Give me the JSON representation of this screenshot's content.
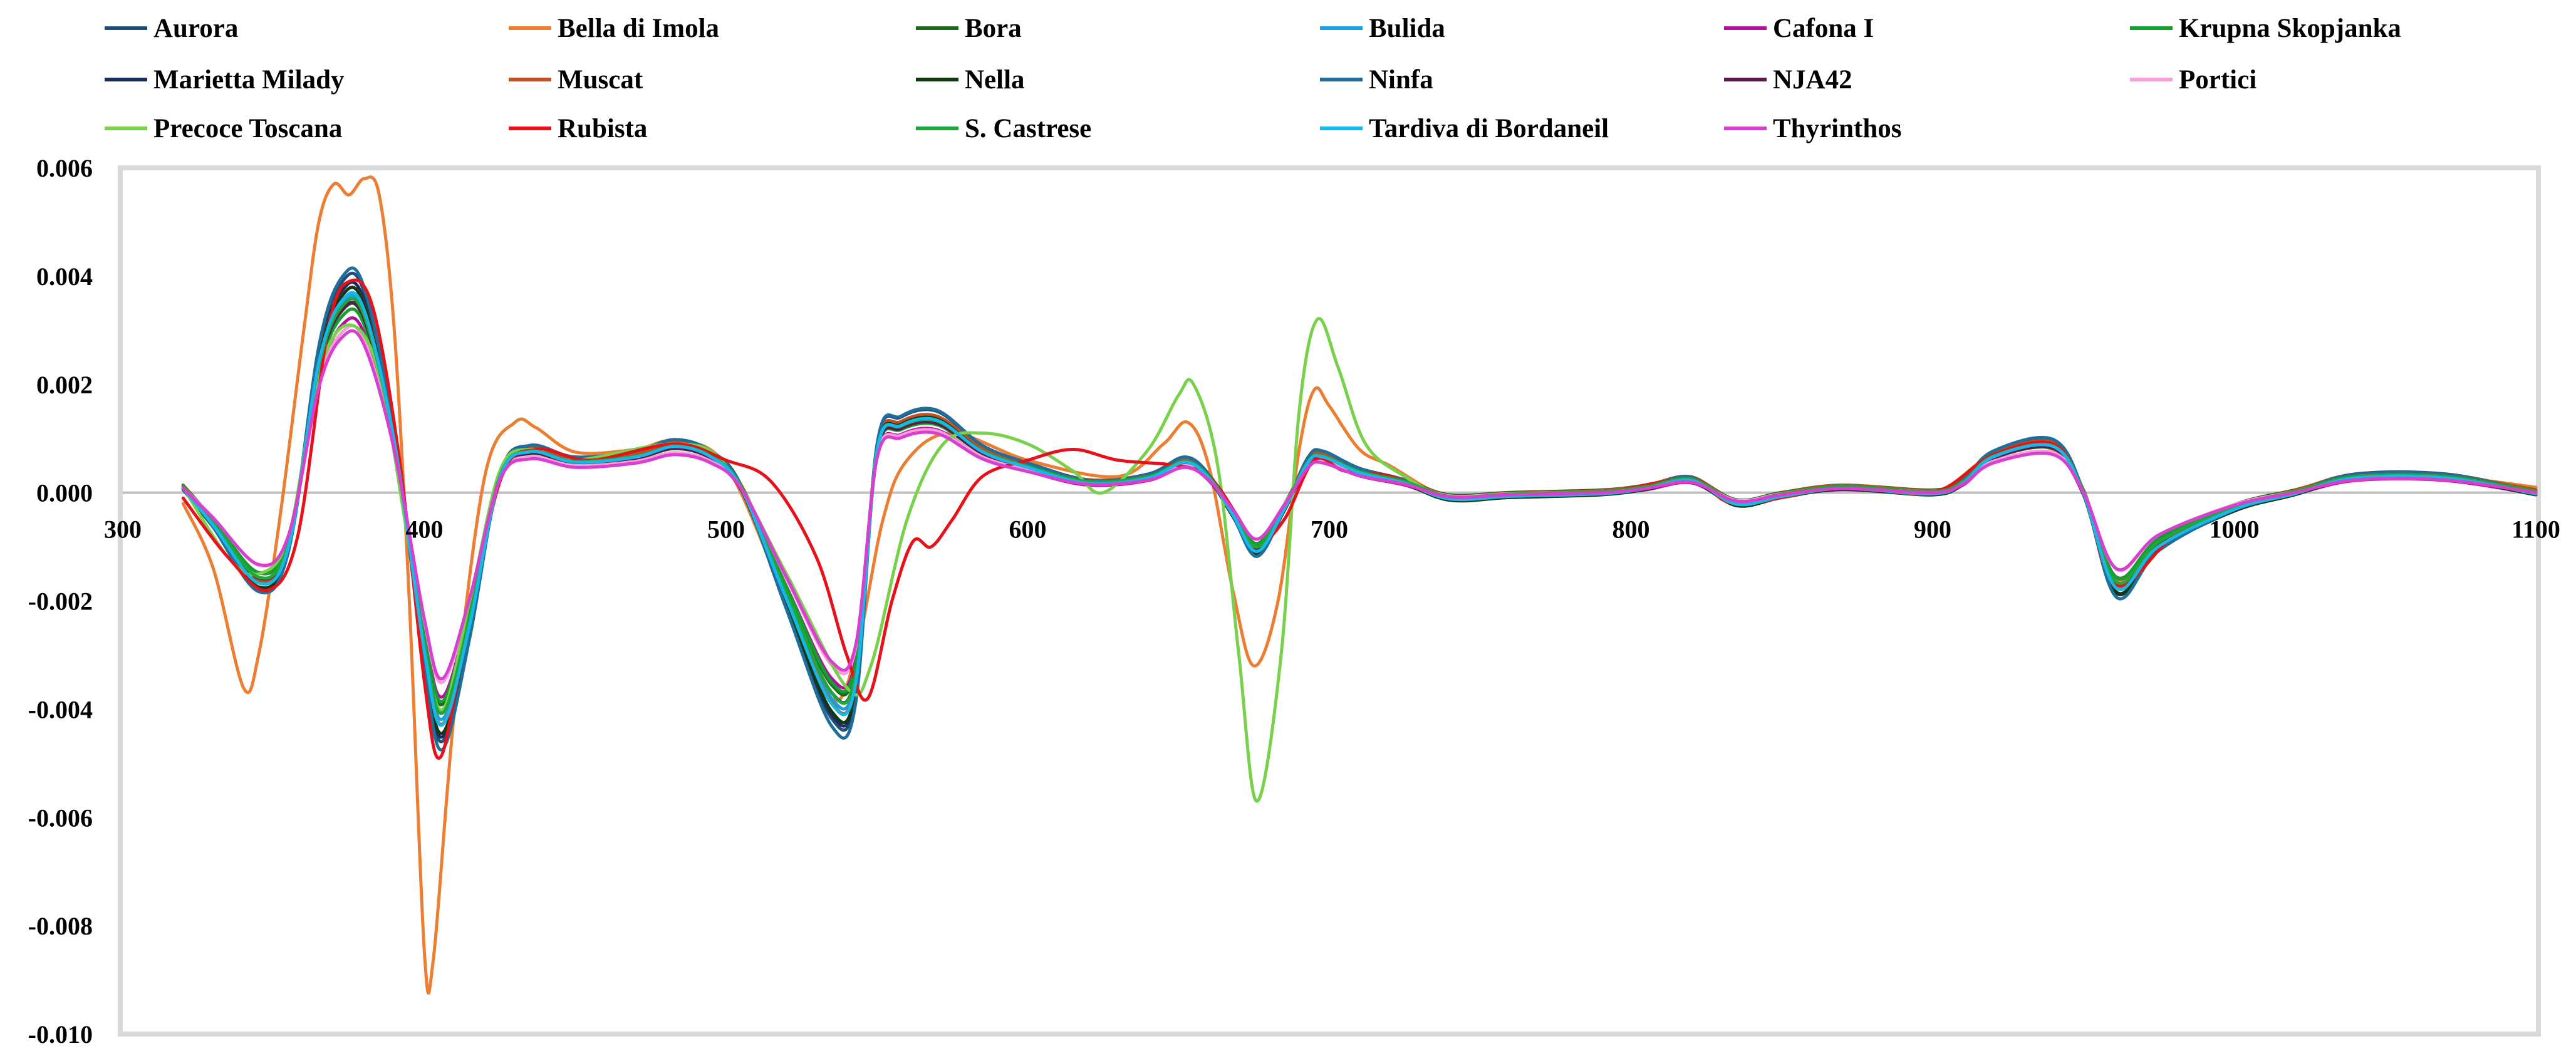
{
  "chart_data": {
    "type": "line",
    "title": "",
    "xlabel": "",
    "ylabel": "",
    "xlim": [
      300,
      1100
    ],
    "ylim": [
      -0.01,
      0.006
    ],
    "xticks": [
      "300",
      "400",
      "500",
      "600",
      "700",
      "800",
      "900",
      "1000",
      "1100"
    ],
    "yticks": [
      "0.006",
      "0.004",
      "0.002",
      "0.000",
      "-0.002",
      "-0.004",
      "-0.006",
      "-0.008",
      "-0.010"
    ],
    "legend_position": "top",
    "series": [
      {
        "name": "Aurora",
        "color": "#1f4e79",
        "scale": 1.05,
        "dy": 3e-05
      },
      {
        "name": "Bella di Imola",
        "color": "#ed7d31",
        "scale": 1.0,
        "dy": 0,
        "dev": [
          [
            320,
            -0.0002
          ],
          [
            330,
            -0.0014
          ],
          [
            340,
            -0.0036
          ],
          [
            345,
            -0.003
          ],
          [
            352,
            -0.0005
          ],
          [
            360,
            0.003
          ],
          [
            365,
            0.005
          ],
          [
            370,
            0.0057
          ],
          [
            375,
            0.0055
          ],
          [
            380,
            0.0058
          ],
          [
            385,
            0.0055
          ],
          [
            390,
            0.003
          ],
          [
            395,
            -0.002
          ],
          [
            400,
            -0.0085
          ],
          [
            403,
            -0.0086
          ],
          [
            410,
            -0.004
          ],
          [
            420,
            0.0003
          ],
          [
            430,
            0.0013
          ],
          [
            437,
            0.0012
          ],
          [
            450,
            0.00075
          ],
          [
            470,
            0.0008
          ],
          [
            483,
            0.00095
          ],
          [
            500,
            0.0005
          ],
          [
            520,
            -0.002
          ],
          [
            535,
            -0.0038
          ],
          [
            543,
            -0.003
          ],
          [
            552,
            -0.0005
          ],
          [
            560,
            0.0006
          ],
          [
            575,
            0.0011
          ],
          [
            600,
            0.0006
          ],
          [
            630,
            0.0003
          ],
          [
            645,
            0.0009
          ],
          [
            653,
            0.0013
          ],
          [
            660,
            0.0005
          ],
          [
            668,
            -0.0018
          ],
          [
            675,
            -0.0032
          ],
          [
            683,
            -0.002
          ],
          [
            690,
            0.0008
          ],
          [
            695,
            0.0019
          ],
          [
            700,
            0.0016
          ],
          [
            710,
            0.0008
          ],
          [
            720,
            0.0005
          ],
          [
            740,
            -0.0001
          ],
          [
            760,
            -5e-05
          ],
          [
            790,
            0.0
          ],
          [
            820,
            0.00025
          ],
          [
            835,
            -0.0002
          ],
          [
            870,
            0.0001
          ],
          [
            900,
            0.0
          ],
          [
            920,
            0.0007
          ],
          [
            940,
            0.0008
          ],
          [
            950,
            0.0
          ],
          [
            961,
            -0.0016
          ],
          [
            980,
            -0.0008
          ],
          [
            1000,
            -0.0003
          ],
          [
            1020,
            0.0
          ],
          [
            1040,
            0.0003
          ],
          [
            1070,
            0.0003
          ],
          [
            1100,
            0.0001
          ]
        ]
      },
      {
        "name": "Bora",
        "color": "#1e6b1e",
        "scale": 0.9,
        "dy": 5e-05
      },
      {
        "name": "Bulida",
        "color": "#1ba1e2",
        "scale": 0.95,
        "dy": 0.0
      },
      {
        "name": "Cafona I",
        "color": "#b4129e",
        "scale": 0.85,
        "dy": -3e-05
      },
      {
        "name": "Krupna Skopjanka",
        "color": "#12a12d",
        "scale": 0.88,
        "dy": 2e-05
      },
      {
        "name": "Marietta Milady",
        "color": "#1a2f5e",
        "scale": 1.02,
        "dy": -2e-05
      },
      {
        "name": "Muscat",
        "color": "#c0501f",
        "scale": 0.98,
        "dy": 4e-05
      },
      {
        "name": "Nella",
        "color": "#123812",
        "scale": 1.0,
        "dy": -4e-05
      },
      {
        "name": "Ninfa",
        "color": "#1f6f9a",
        "scale": 1.08,
        "dy": 1e-05
      },
      {
        "name": "NJA42",
        "color": "#5c1a4a",
        "scale": 0.92,
        "dy": -1e-05
      },
      {
        "name": "Portici",
        "color": "#f59ed8",
        "scale": 0.8,
        "dy": 2e-05
      },
      {
        "name": "Precoce Toscana",
        "color": "#77d14a",
        "scale": 1.0,
        "dy": 0,
        "dev": [
          [
            320,
            0.0001
          ],
          [
            335,
            -0.0012
          ],
          [
            345,
            -0.0015
          ],
          [
            355,
            -0.0008
          ],
          [
            365,
            0.0022
          ],
          [
            375,
            0.0031
          ],
          [
            385,
            0.0022
          ],
          [
            395,
            -0.001
          ],
          [
            405,
            -0.004
          ],
          [
            415,
            -0.002
          ],
          [
            425,
            0.0004
          ],
          [
            435,
            0.0008
          ],
          [
            450,
            0.0006
          ],
          [
            483,
            0.0009
          ],
          [
            500,
            0.0005
          ],
          [
            520,
            -0.0015
          ],
          [
            540,
            -0.0036
          ],
          [
            548,
            -0.0032
          ],
          [
            560,
            -0.0005
          ],
          [
            572,
            0.0009
          ],
          [
            585,
            0.0011
          ],
          [
            600,
            0.0009
          ],
          [
            615,
            0.0004
          ],
          [
            625,
            0.0
          ],
          [
            640,
            0.0008
          ],
          [
            650,
            0.0018
          ],
          [
            655,
            0.002
          ],
          [
            663,
            0.0005
          ],
          [
            670,
            -0.003
          ],
          [
            676,
            -0.0057
          ],
          [
            684,
            -0.003
          ],
          [
            690,
            0.0015
          ],
          [
            696,
            0.0032
          ],
          [
            703,
            0.0023
          ],
          [
            712,
            0.0009
          ],
          [
            725,
            0.0003
          ],
          [
            740,
            -0.0001
          ],
          [
            760,
            -5e-05
          ],
          [
            790,
            0.0
          ],
          [
            820,
            0.00025
          ],
          [
            835,
            -0.0002
          ],
          [
            870,
            0.0001
          ],
          [
            900,
            0.0
          ],
          [
            920,
            0.0007
          ],
          [
            940,
            0.0009
          ],
          [
            950,
            0.0
          ],
          [
            961,
            -0.0017
          ],
          [
            980,
            -0.0008
          ],
          [
            1000,
            -0.0003
          ],
          [
            1020,
            0.0
          ],
          [
            1040,
            0.0003
          ],
          [
            1070,
            0.0003
          ],
          [
            1100,
            0.0
          ]
        ]
      },
      {
        "name": "Rubista",
        "color": "#e8111a",
        "scale": 1.0,
        "dy": 0,
        "dev": [
          [
            320,
            -0.0001
          ],
          [
            335,
            -0.0012
          ],
          [
            348,
            -0.0018
          ],
          [
            358,
            -0.0008
          ],
          [
            368,
            0.003
          ],
          [
            375,
            0.0039
          ],
          [
            383,
            0.0034
          ],
          [
            392,
            0.0005
          ],
          [
            400,
            -0.0035
          ],
          [
            405,
            -0.0049
          ],
          [
            412,
            -0.0032
          ],
          [
            425,
            0.0002
          ],
          [
            437,
            0.0008
          ],
          [
            455,
            0.0006
          ],
          [
            483,
            0.0009
          ],
          [
            500,
            0.0006
          ],
          [
            515,
            0.0002
          ],
          [
            530,
            -0.0012
          ],
          [
            540,
            -0.003
          ],
          [
            547,
            -0.0038
          ],
          [
            555,
            -0.002
          ],
          [
            562,
            -0.0009
          ],
          [
            568,
            -0.001
          ],
          [
            575,
            -0.0005
          ],
          [
            585,
            0.0003
          ],
          [
            600,
            0.0006
          ],
          [
            615,
            0.0008
          ],
          [
            630,
            0.0006
          ],
          [
            650,
            0.0005
          ],
          [
            660,
            0.0003
          ],
          [
            668,
            -0.0003
          ],
          [
            675,
            -0.001
          ],
          [
            685,
            -0.0005
          ],
          [
            695,
            0.0006
          ],
          [
            705,
            0.0004
          ],
          [
            720,
            0.0003
          ],
          [
            740,
            -0.0001
          ],
          [
            760,
            -5e-05
          ],
          [
            790,
            0.0
          ],
          [
            820,
            0.00025
          ],
          [
            835,
            -0.0002
          ],
          [
            870,
            0.0001
          ],
          [
            900,
            0.0
          ],
          [
            920,
            0.0007
          ],
          [
            940,
            0.0009
          ],
          [
            950,
            0.0
          ],
          [
            961,
            -0.0017
          ],
          [
            980,
            -0.0008
          ],
          [
            1000,
            -0.0003
          ],
          [
            1020,
            0.0
          ],
          [
            1040,
            0.0003
          ],
          [
            1070,
            0.0003
          ],
          [
            1100,
            0.0
          ]
        ]
      },
      {
        "name": "S. Castrese",
        "color": "#1ea83c",
        "scale": 0.93,
        "dy": 2e-05
      },
      {
        "name": "Tardiva di Bordaneil",
        "color": "#17b7e8",
        "scale": 0.97,
        "dy": -2e-05
      },
      {
        "name": "Thyrinthos",
        "color": "#d83fd0",
        "scale": 0.78,
        "dy": 0.0
      }
    ],
    "base_profile": [
      [
        320,
        0.0001
      ],
      [
        330,
        -0.0006
      ],
      [
        345,
        -0.0017
      ],
      [
        355,
        -0.001
      ],
      [
        365,
        0.0025
      ],
      [
        373,
        0.0037
      ],
      [
        380,
        0.0035
      ],
      [
        390,
        0.001
      ],
      [
        400,
        -0.003
      ],
      [
        406,
        -0.0044
      ],
      [
        415,
        -0.0025
      ],
      [
        425,
        0.0003
      ],
      [
        435,
        0.0008
      ],
      [
        450,
        0.0006
      ],
      [
        470,
        0.0007
      ],
      [
        483,
        0.0009
      ],
      [
        495,
        0.0007
      ],
      [
        505,
        0.0001
      ],
      [
        520,
        -0.002
      ],
      [
        535,
        -0.004
      ],
      [
        543,
        -0.0036
      ],
      [
        550,
        0.0008
      ],
      [
        558,
        0.0013
      ],
      [
        570,
        0.0014
      ],
      [
        585,
        0.0008
      ],
      [
        600,
        0.0005
      ],
      [
        620,
        0.0002
      ],
      [
        640,
        0.0003
      ],
      [
        652,
        0.0006
      ],
      [
        660,
        0.0003
      ],
      [
        668,
        -0.0004
      ],
      [
        676,
        -0.0011
      ],
      [
        685,
        -0.0003
      ],
      [
        693,
        0.0006
      ],
      [
        698,
        0.0007
      ],
      [
        710,
        0.0004
      ],
      [
        725,
        0.0002
      ],
      [
        740,
        -0.0001
      ],
      [
        760,
        -5e-05
      ],
      [
        790,
        0.0
      ],
      [
        805,
        0.0001
      ],
      [
        820,
        0.00025
      ],
      [
        835,
        -0.0002
      ],
      [
        850,
        -5e-05
      ],
      [
        870,
        0.0001
      ],
      [
        900,
        0.0
      ],
      [
        910,
        0.0002
      ],
      [
        920,
        0.0007
      ],
      [
        940,
        0.0009
      ],
      [
        950,
        0.0
      ],
      [
        961,
        -0.0018
      ],
      [
        975,
        -0.001
      ],
      [
        1000,
        -0.0003
      ],
      [
        1020,
        0.0
      ],
      [
        1040,
        0.0003
      ],
      [
        1070,
        0.0003
      ],
      [
        1100,
        0.0
      ]
    ]
  }
}
